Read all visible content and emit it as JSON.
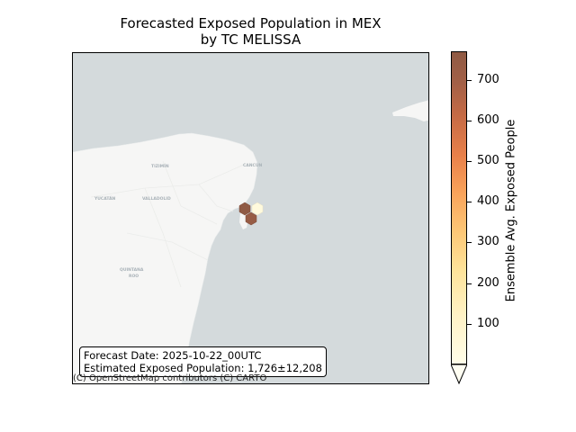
{
  "title": {
    "line1": "Forecasted Exposed Population in MEX",
    "line2": "by TC MELISSA"
  },
  "map": {
    "place_labels": [
      "TIZIMÍN",
      "CANCÚN",
      "YUCATÁN",
      "VALLADOLID",
      "QUINTANA",
      "ROO"
    ],
    "attribution": "(C) OpenStreetMap contributors (C) CARTO",
    "ocean_color": "#d4dadc",
    "land_color": "#f6f6f5",
    "exposure_cells_ensemble_avg": [
      {
        "label": "cell-north-west",
        "value": 770
      },
      {
        "label": "cell-south",
        "value": 740
      },
      {
        "label": "cell-east",
        "value": 40
      }
    ]
  },
  "info": {
    "forecast_date": "Forecast Date: 2025-10-22_00UTC",
    "exposed_population": "Estimated Exposed Population: 1,726±12,208"
  },
  "colorbar": {
    "label": "Ensemble Avg. Exposed People",
    "range": [
      0,
      770
    ],
    "ticks": [
      "100",
      "200",
      "300",
      "400",
      "500",
      "600",
      "700"
    ],
    "extend": "min",
    "colormap": "light-yellow to orange to brown"
  }
}
